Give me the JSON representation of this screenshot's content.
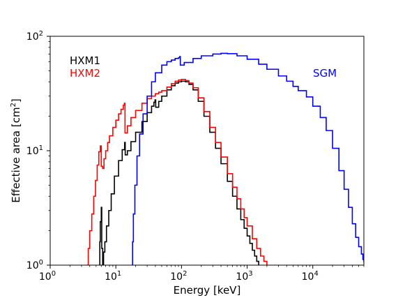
{
  "chart_data": {
    "type": "line",
    "title": "",
    "xlabel": "Energy [keV]",
    "ylabel_main": "Effective area [cm",
    "ylabel_sup": "2",
    "ylabel_close": "]",
    "x_scale": "log",
    "y_scale": "log",
    "xlim": [
      1,
      60000
    ],
    "ylim": [
      1,
      100
    ],
    "grid": false,
    "legend_placement": "top-left labels, SGM label top-right",
    "x_ticks": [
      {
        "value": 1,
        "base": "10",
        "exp": "0"
      },
      {
        "value": 10,
        "base": "10",
        "exp": "1"
      },
      {
        "value": 100,
        "base": "10",
        "exp": "2"
      },
      {
        "value": 1000,
        "base": "10",
        "exp": "3"
      },
      {
        "value": 10000,
        "base": "10",
        "exp": "4"
      }
    ],
    "y_ticks": [
      {
        "value": 1,
        "base": "10",
        "exp": "0"
      },
      {
        "value": 10,
        "base": "10",
        "exp": "1"
      },
      {
        "value": 100,
        "base": "10",
        "exp": "2"
      }
    ],
    "series": [
      {
        "name": "HXM1",
        "color": "#000000",
        "points": [
          [
            5.6,
            1.0
          ],
          [
            5.7,
            1.6
          ],
          [
            5.8,
            2.4
          ],
          [
            6.0,
            3.2
          ],
          [
            6.1,
            1.4
          ],
          [
            6.3,
            1.0
          ],
          [
            6.5,
            1.3
          ],
          [
            6.8,
            1.6
          ],
          [
            7.2,
            2.2
          ],
          [
            7.8,
            3.0
          ],
          [
            8.5,
            4.2
          ],
          [
            9.5,
            6.0
          ],
          [
            11,
            8.2
          ],
          [
            12.5,
            10.2
          ],
          [
            13.6,
            11.8
          ],
          [
            13.9,
            9.2
          ],
          [
            15,
            10.0
          ],
          [
            17,
            12.0
          ],
          [
            20,
            14.5
          ],
          [
            25,
            18.0
          ],
          [
            30,
            21.5
          ],
          [
            35,
            24.5
          ],
          [
            38,
            26.5
          ],
          [
            39.5,
            27.8
          ],
          [
            40.5,
            24.0
          ],
          [
            45,
            27.0
          ],
          [
            50,
            30.0
          ],
          [
            60,
            34.0
          ],
          [
            70,
            37.0
          ],
          [
            80,
            39.0
          ],
          [
            90,
            40.0
          ],
          [
            100,
            40.5
          ],
          [
            115,
            40.0
          ],
          [
            130,
            38.0
          ],
          [
            150,
            34.0
          ],
          [
            180,
            27.0
          ],
          [
            220,
            20.0
          ],
          [
            270,
            14.5
          ],
          [
            330,
            10.5
          ],
          [
            400,
            7.7
          ],
          [
            500,
            5.4
          ],
          [
            600,
            4.0
          ],
          [
            700,
            3.1
          ],
          [
            800,
            2.5
          ],
          [
            900,
            2.1
          ],
          [
            1000,
            1.8
          ],
          [
            1100,
            1.55
          ],
          [
            1200,
            1.35
          ],
          [
            1300,
            1.2
          ],
          [
            1400,
            1.08
          ],
          [
            1500,
            1.0
          ]
        ]
      },
      {
        "name": "HXM2",
        "color": "#ff0000",
        "points": [
          [
            3.6,
            1.0
          ],
          [
            3.8,
            1.4
          ],
          [
            4.0,
            2.0
          ],
          [
            4.3,
            2.8
          ],
          [
            4.6,
            4.0
          ],
          [
            4.9,
            5.5
          ],
          [
            5.2,
            7.5
          ],
          [
            5.5,
            9.8
          ],
          [
            5.8,
            11.0
          ],
          [
            6.0,
            7.3
          ],
          [
            6.3,
            7.0
          ],
          [
            6.6,
            8.5
          ],
          [
            7.0,
            10.0
          ],
          [
            7.5,
            11.8
          ],
          [
            8.0,
            13.5
          ],
          [
            9.0,
            16.0
          ],
          [
            10,
            18.5
          ],
          [
            11,
            21.0
          ],
          [
            12,
            23.0
          ],
          [
            13.0,
            25.0
          ],
          [
            13.5,
            26.0
          ],
          [
            13.8,
            14.3
          ],
          [
            15,
            16.5
          ],
          [
            17,
            19.5
          ],
          [
            20,
            22.5
          ],
          [
            25,
            26.0
          ],
          [
            30,
            28.5
          ],
          [
            35,
            30.0
          ],
          [
            40,
            31.5
          ],
          [
            45,
            32.5
          ],
          [
            50,
            33.5
          ],
          [
            60,
            36.0
          ],
          [
            70,
            38.5
          ],
          [
            80,
            40.5
          ],
          [
            90,
            41.5
          ],
          [
            100,
            42.0
          ],
          [
            115,
            41.0
          ],
          [
            130,
            39.0
          ],
          [
            150,
            35.5
          ],
          [
            180,
            29.0
          ],
          [
            220,
            22.0
          ],
          [
            270,
            16.0
          ],
          [
            330,
            11.8
          ],
          [
            400,
            8.8
          ],
          [
            500,
            6.3
          ],
          [
            600,
            4.8
          ],
          [
            700,
            3.8
          ],
          [
            800,
            3.1
          ],
          [
            900,
            2.6
          ],
          [
            1000,
            2.2
          ],
          [
            1200,
            1.7
          ],
          [
            1400,
            1.4
          ],
          [
            1600,
            1.2
          ],
          [
            1800,
            1.08
          ],
          [
            2000,
            1.0
          ]
        ]
      },
      {
        "name": "SGM",
        "color": "#0000ff",
        "points": [
          [
            17.5,
            1.0
          ],
          [
            18,
            1.6
          ],
          [
            18.5,
            2.8
          ],
          [
            19.5,
            5.0
          ],
          [
            21,
            9.0
          ],
          [
            23,
            14.0
          ],
          [
            26,
            21.0
          ],
          [
            30,
            30.0
          ],
          [
            35,
            40.0
          ],
          [
            40,
            48.0
          ],
          [
            50,
            56.0
          ],
          [
            60,
            60.0
          ],
          [
            70,
            62.0
          ],
          [
            80,
            64.0
          ],
          [
            90,
            65.0
          ],
          [
            94,
            66.5
          ],
          [
            96,
            56.0
          ],
          [
            110,
            59.0
          ],
          [
            150,
            64.0
          ],
          [
            200,
            67.5
          ],
          [
            300,
            70.0
          ],
          [
            400,
            71.0
          ],
          [
            500,
            70.5
          ],
          [
            700,
            67.5
          ],
          [
            1000,
            63.0
          ],
          [
            1500,
            57.0
          ],
          [
            2000,
            51.5
          ],
          [
            3000,
            45.0
          ],
          [
            4000,
            40.5
          ],
          [
            5000,
            36.5
          ],
          [
            6000,
            33.5
          ],
          [
            8000,
            29.5
          ],
          [
            10000,
            24.5
          ],
          [
            13000,
            19.5
          ],
          [
            16000,
            15.0
          ],
          [
            20000,
            10.5
          ],
          [
            25000,
            6.7
          ],
          [
            30000,
            4.6
          ],
          [
            35000,
            3.2
          ],
          [
            40000,
            2.3
          ],
          [
            45000,
            1.75
          ],
          [
            50000,
            1.45
          ],
          [
            55000,
            1.25
          ],
          [
            58000,
            1.12
          ],
          [
            60000,
            1.05
          ]
        ]
      }
    ],
    "annotations": [
      {
        "text": "HXM1",
        "color": "#000000"
      },
      {
        "text": "HXM2",
        "color": "#ff0000"
      },
      {
        "text": "SGM",
        "color": "#0000ff"
      }
    ]
  }
}
